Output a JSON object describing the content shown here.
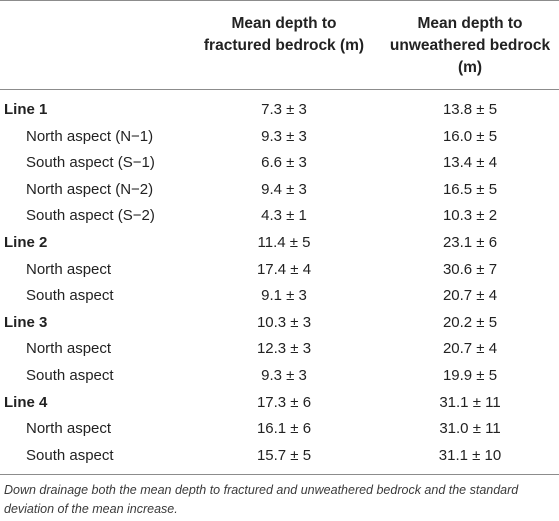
{
  "table": {
    "headers": {
      "col1": "Mean depth to fractured bedrock (m)",
      "col2": "Mean depth to unweathered bedrock (m)"
    },
    "rows": [
      {
        "label": "Line 1",
        "type": "group",
        "fractured": "7.3 ± 3",
        "unweathered": "13.8 ± 5"
      },
      {
        "label": "North aspect (N−1)",
        "type": "sub",
        "fractured": "9.3 ± 3",
        "unweathered": "16.0 ± 5"
      },
      {
        "label": "South aspect (S−1)",
        "type": "sub",
        "fractured": "6.6 ± 3",
        "unweathered": "13.4 ± 4"
      },
      {
        "label": "North aspect (N−2)",
        "type": "sub",
        "fractured": "9.4 ± 3",
        "unweathered": "16.5 ± 5"
      },
      {
        "label": "South aspect (S−2)",
        "type": "sub",
        "fractured": "4.3 ± 1",
        "unweathered": "10.3 ± 2"
      },
      {
        "label": "Line 2",
        "type": "group",
        "fractured": "11.4 ± 5",
        "unweathered": "23.1 ± 6"
      },
      {
        "label": "North aspect",
        "type": "sub",
        "fractured": "17.4 ± 4",
        "unweathered": "30.6 ± 7"
      },
      {
        "label": "South aspect",
        "type": "sub",
        "fractured": "9.1 ± 3",
        "unweathered": "20.7 ± 4"
      },
      {
        "label": "Line 3",
        "type": "group",
        "fractured": "10.3 ± 3",
        "unweathered": "20.2 ± 5"
      },
      {
        "label": "North aspect",
        "type": "sub",
        "fractured": "12.3 ± 3",
        "unweathered": "20.7 ± 4"
      },
      {
        "label": "South aspect",
        "type": "sub",
        "fractured": "9.3 ± 3",
        "unweathered": "19.9 ± 5"
      },
      {
        "label": "Line 4",
        "type": "group",
        "fractured": "17.3 ± 6",
        "unweathered": "31.1 ± 11"
      },
      {
        "label": "North aspect",
        "type": "sub",
        "fractured": "16.1 ± 6",
        "unweathered": "31.0 ± 11"
      },
      {
        "label": "South aspect",
        "type": "sub",
        "fractured": "15.7 ± 5",
        "unweathered": "31.1 ± 10"
      }
    ]
  },
  "caption": "Down drainage both the mean depth to fractured and unweathered bedrock and the standard deviation of the mean increase."
}
